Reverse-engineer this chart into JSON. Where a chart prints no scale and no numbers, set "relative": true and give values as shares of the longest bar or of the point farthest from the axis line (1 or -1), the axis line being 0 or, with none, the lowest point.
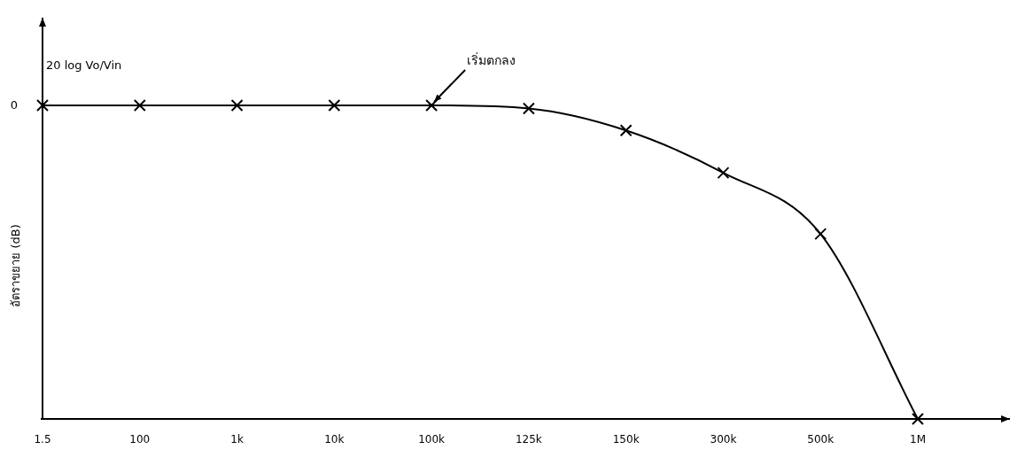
{
  "chart_data": {
    "type": "line",
    "relative": true,
    "ylabel": "อัตราขยาย (dB)",
    "categories": [
      "1.5",
      "100",
      "1k",
      "10k",
      "100k",
      "125k",
      "150k",
      "300k",
      "500k",
      "1M"
    ],
    "series": [
      {
        "color": "#000000",
        "values": [
          1,
          1,
          1,
          1,
          1,
          0.99,
          0.92,
          0.785,
          0.59,
          0
        ]
      }
    ],
    "marker": "cross",
    "line_style": "solid",
    "grid": false,
    "annotations": [
      "0",
      "20 log Vo/Vin",
      {
        "text": "เริ่มตกลง",
        "x": "100k",
        "y": 1
      }
    ]
  }
}
